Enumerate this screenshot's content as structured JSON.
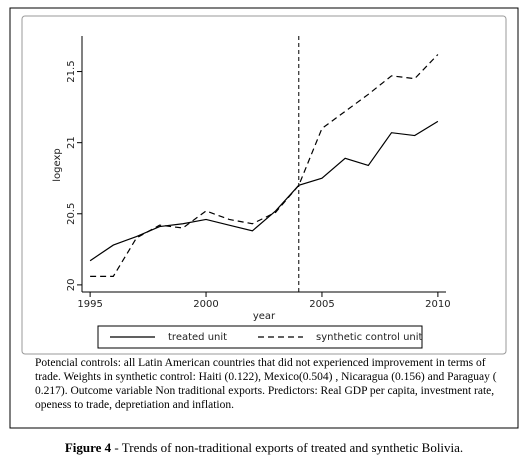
{
  "chart_data": {
    "type": "line",
    "y_label": "logexp",
    "x_label": "year",
    "x": [
      1995,
      1996,
      1997,
      1998,
      1999,
      2000,
      2001,
      2002,
      2003,
      2004,
      2005,
      2006,
      2007,
      2008,
      2009,
      2010
    ],
    "series": [
      {
        "name": "treated unit",
        "color": "#000000",
        "dash": false,
        "values": [
          20.17,
          20.28,
          20.34,
          20.41,
          20.43,
          20.46,
          20.42,
          20.38,
          20.52,
          20.7,
          20.75,
          20.89,
          20.84,
          21.07,
          21.05,
          21.15
        ]
      },
      {
        "name": "synthetic control unit",
        "color": "#000000",
        "dash": true,
        "values": [
          20.06,
          20.06,
          20.33,
          20.42,
          20.4,
          20.52,
          20.46,
          20.43,
          20.51,
          20.7,
          21.1,
          21.22,
          21.34,
          21.47,
          21.45,
          21.62
        ]
      }
    ],
    "vline": 2004,
    "xlim": [
      1994.65,
      2010.35
    ],
    "xticks": [
      1995,
      2000,
      2005,
      2010
    ],
    "ylim": [
      19.95,
      21.75
    ],
    "yticks": [
      20,
      20.5,
      21,
      21.5
    ],
    "legend": "bottom",
    "note": "Potencial controls: all Latin American  countries that did not experienced improvement in terms of trade.  Weights in synthetic control:  Haiti (0.122), Mexico(0.504) , Nicaragua (0.156)  and Paraguay ( 0.217).  Outcome variable Non traditional exports.  Predictors: Real GDP per capita, investment rate, openess to trade, depretiation and  inflation."
  },
  "caption_label": "Figure 4",
  "caption": "- Trends of non-traditional exports of treated and synthetic Bolivia."
}
